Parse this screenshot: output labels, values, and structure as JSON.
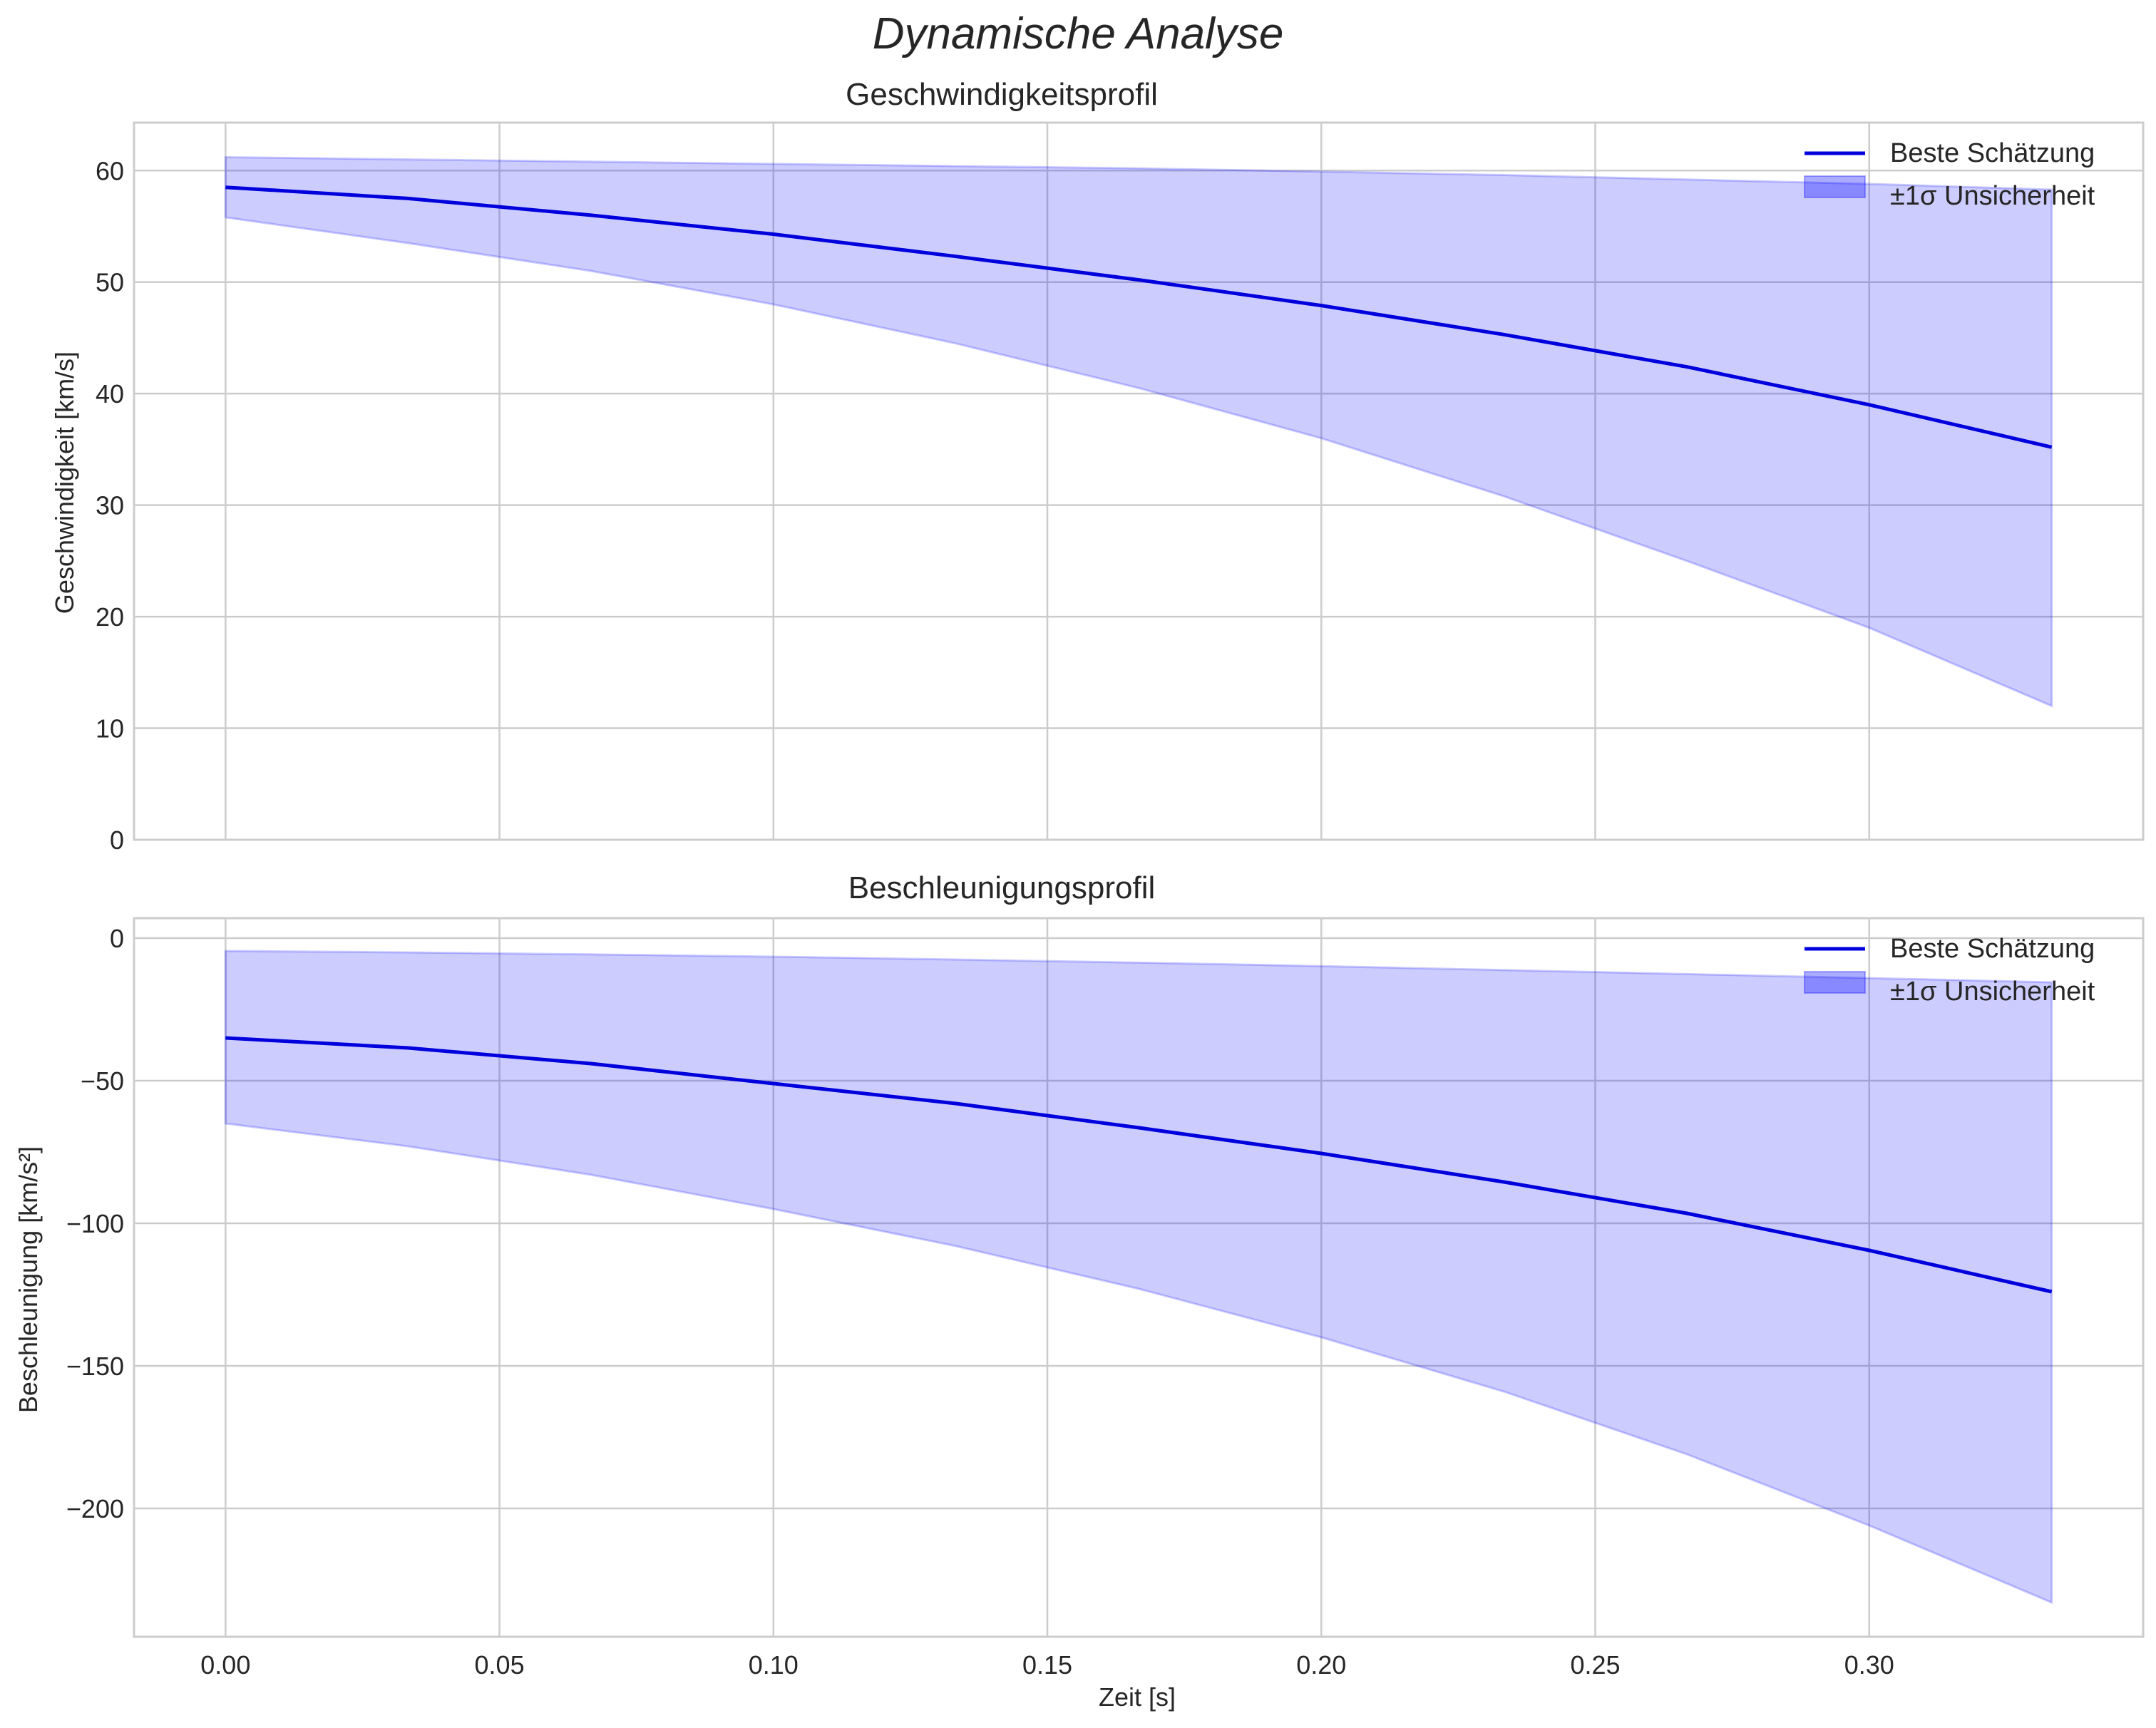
{
  "figure": {
    "suptitle": "Dynamische Analyse"
  },
  "chart_data": [
    {
      "type": "line",
      "title": "Geschwindigkeitsprofil",
      "xlabel": "",
      "ylabel": "Geschwindigkeit [km/s]",
      "xlim": [
        -0.0167,
        0.35
      ],
      "ylim": [
        0,
        64.3
      ],
      "grid": true,
      "legend_position": "top-right",
      "x_ticks": [
        0.0,
        0.05,
        0.1,
        0.15,
        0.2,
        0.25,
        0.3
      ],
      "x_tick_labels": [
        "0.00",
        "0.05",
        "0.10",
        "0.15",
        "0.20",
        "0.25",
        "0.30"
      ],
      "show_x_tick_labels": false,
      "y_ticks": [
        0,
        10,
        20,
        30,
        40,
        50,
        60
      ],
      "y_tick_labels": [
        "0",
        "10",
        "20",
        "30",
        "40",
        "50",
        "60"
      ],
      "x": [
        0.0,
        0.0333,
        0.0667,
        0.1,
        0.1333,
        0.1667,
        0.2,
        0.2333,
        0.2667,
        0.3,
        0.3333
      ],
      "series": [
        {
          "name": "Beste Schätzung",
          "kind": "line",
          "color": "#0000dd",
          "values": [
            58.5,
            57.5,
            56.0,
            54.3,
            52.3,
            50.2,
            47.9,
            45.3,
            42.4,
            39.0,
            35.2
          ]
        },
        {
          "name": "±1σ Unsicherheit",
          "kind": "band",
          "color": "#0000ff",
          "lower": [
            55.8,
            53.5,
            51.0,
            48.0,
            44.5,
            40.5,
            36.0,
            30.8,
            25.0,
            19.0,
            12.0
          ],
          "upper": [
            61.2,
            61.0,
            60.8,
            60.6,
            60.4,
            60.2,
            59.9,
            59.6,
            59.2,
            58.8,
            58.3
          ]
        }
      ]
    },
    {
      "type": "line",
      "title": "Beschleunigungsprofil",
      "xlabel": "Zeit [s]",
      "ylabel": "Beschleunigung [km/s²]",
      "xlim": [
        -0.0167,
        0.35
      ],
      "ylim": [
        -245,
        7
      ],
      "grid": true,
      "legend_position": "top-right",
      "x_ticks": [
        0.0,
        0.05,
        0.1,
        0.15,
        0.2,
        0.25,
        0.3
      ],
      "x_tick_labels": [
        "0.00",
        "0.05",
        "0.10",
        "0.15",
        "0.20",
        "0.25",
        "0.30"
      ],
      "show_x_tick_labels": true,
      "y_ticks": [
        0,
        -50,
        -100,
        -150,
        -200
      ],
      "y_tick_labels": [
        "0",
        "−50",
        "−100",
        "−150",
        "−200"
      ],
      "x": [
        0.0,
        0.0333,
        0.0667,
        0.1,
        0.1333,
        0.1667,
        0.2,
        0.2333,
        0.2667,
        0.3,
        0.3333
      ],
      "series": [
        {
          "name": "Beste Schätzung",
          "kind": "line",
          "color": "#0000dd",
          "values": [
            -35,
            -38.5,
            -44,
            -51,
            -58,
            -66.5,
            -75.5,
            -85.5,
            -96.5,
            -109.5,
            -124
          ]
        },
        {
          "name": "±1σ Unsicherheit",
          "kind": "band",
          "color": "#0000ff",
          "lower": [
            -65,
            -73,
            -83,
            -95,
            -108,
            -123,
            -140,
            -159,
            -181,
            -206,
            -233
          ],
          "upper": [
            -4.5,
            -5,
            -5.7,
            -6.5,
            -7.5,
            -8.6,
            -9.8,
            -11.2,
            -12.6,
            -14,
            -15.5
          ]
        }
      ]
    }
  ]
}
